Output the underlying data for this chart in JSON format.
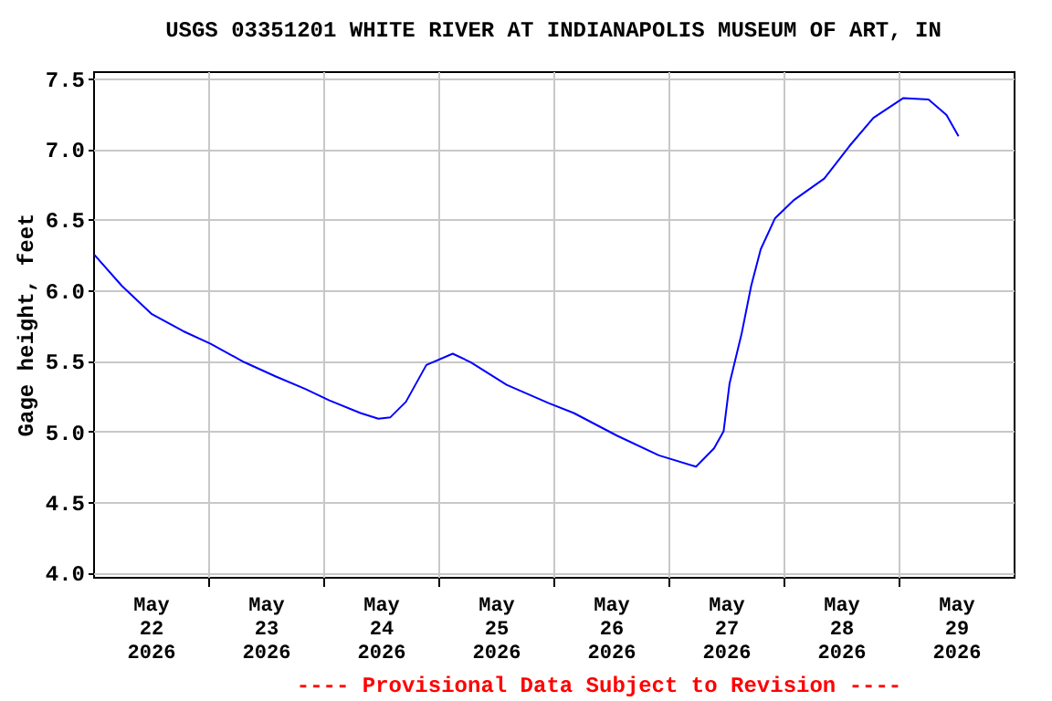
{
  "chart_data": {
    "type": "line",
    "title": "USGS 03351201 WHITE RIVER AT INDIANAPOLIS MUSEUM OF ART, IN",
    "ylabel": "Gage height, feet",
    "annotations": [
      "---- Provisional Data Subject to Revision ----"
    ],
    "x": [
      "2026-05-22T00:15",
      "2026-05-22T06:00",
      "2026-05-22T12:15",
      "2026-05-22T18:45",
      "2026-05-23T00:30",
      "2026-05-23T07:30",
      "2026-05-23T14:00",
      "2026-05-23T20:15",
      "2026-05-24T01:15",
      "2026-05-24T07:45",
      "2026-05-24T11:30",
      "2026-05-24T14:00",
      "2026-05-24T17:15",
      "2026-05-24T21:30",
      "2026-05-25T03:00",
      "2026-05-25T06:45",
      "2026-05-25T14:15",
      "2026-05-25T23:00",
      "2026-05-26T04:15",
      "2026-05-26T13:15",
      "2026-05-26T22:00",
      "2026-05-27T05:45",
      "2026-05-27T09:30",
      "2026-05-27T11:30",
      "2026-05-27T12:45",
      "2026-05-27T15:15",
      "2026-05-27T17:15",
      "2026-05-27T19:15",
      "2026-05-27T22:15",
      "2026-05-28T02:15",
      "2026-05-28T08:30",
      "2026-05-28T13:45",
      "2026-05-28T18:45",
      "2026-05-29T01:00",
      "2026-05-29T06:15",
      "2026-05-29T10:00",
      "2026-05-29T12:30"
    ],
    "series": [
      {
        "color": "#0000ff",
        "values": [
          6.25,
          6.03,
          5.83,
          5.71,
          5.62,
          5.49,
          5.39,
          5.3,
          5.22,
          5.13,
          5.09,
          5.1,
          5.21,
          5.47,
          5.55,
          5.49,
          5.33,
          5.2,
          5.13,
          4.97,
          4.83,
          4.75,
          4.88,
          5.0,
          5.34,
          5.69,
          6.03,
          6.29,
          6.51,
          6.64,
          6.79,
          7.02,
          7.22,
          7.36,
          7.35,
          7.24,
          7.09
        ]
      }
    ],
    "xlim": [
      "2026-05-22T00:00",
      "2026-05-30T00:00"
    ],
    "xticks": [
      {
        "value": "2026-05-22T12:00",
        "label": "May\n22\n2026"
      },
      {
        "value": "2026-05-23T00:00",
        "label": null
      },
      {
        "value": "2026-05-23T12:00",
        "label": "May\n23\n2026"
      },
      {
        "value": "2026-05-24T00:00",
        "label": null
      },
      {
        "value": "2026-05-24T12:00",
        "label": "May\n24\n2026"
      },
      {
        "value": "2026-05-25T00:00",
        "label": null
      },
      {
        "value": "2026-05-25T12:00",
        "label": "May\n25\n2026"
      },
      {
        "value": "2026-05-26T00:00",
        "label": null
      },
      {
        "value": "2026-05-26T12:00",
        "label": "May\n26\n2026"
      },
      {
        "value": "2026-05-27T00:00",
        "label": null
      },
      {
        "value": "2026-05-27T12:00",
        "label": "May\n27\n2026"
      },
      {
        "value": "2026-05-28T00:00",
        "label": null
      },
      {
        "value": "2026-05-28T12:00",
        "label": "May\n28\n2026"
      },
      {
        "value": "2026-05-29T00:00",
        "label": null
      },
      {
        "value": "2026-05-29T12:00",
        "label": "May\n29\n2026"
      }
    ],
    "ylim": [
      3.97,
      7.55
    ],
    "yticks": [
      {
        "value": 4,
        "label": "4.0"
      },
      {
        "value": 4.5,
        "label": "4.5"
      },
      {
        "value": 5,
        "label": "5.0"
      },
      {
        "value": 5.5,
        "label": "5.5"
      },
      {
        "value": 6,
        "label": "6.0"
      },
      {
        "value": 6.5,
        "label": "6.5"
      },
      {
        "value": 7,
        "label": "7.0"
      },
      {
        "value": 7.5,
        "label": "7.5"
      }
    ],
    "grid": true,
    "line_style": "solid"
  }
}
